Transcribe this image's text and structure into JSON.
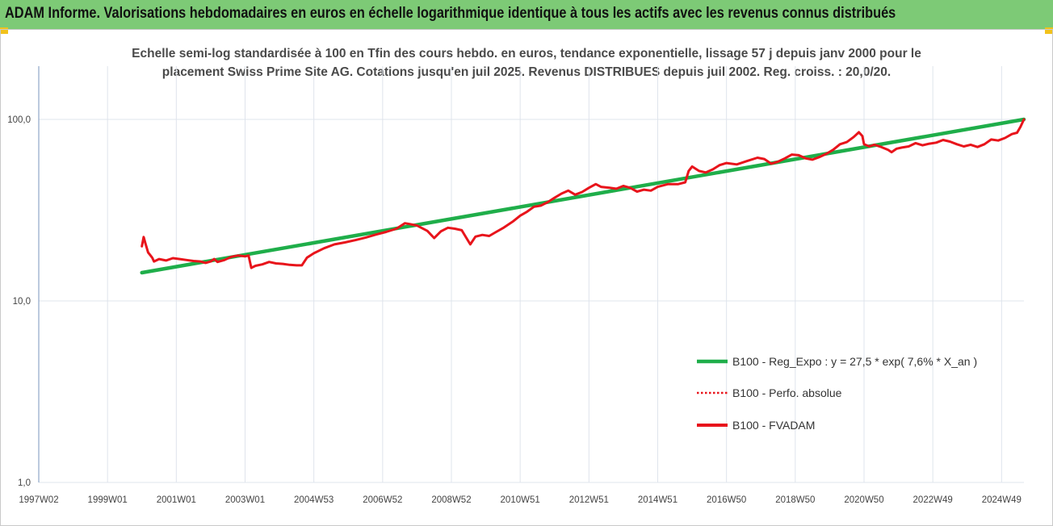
{
  "header": {
    "title": "ADAM Informe. Valorisations hebdomadaires en euros en échelle logarithmique identique à tous les actifs avec les revenus connus distribués"
  },
  "colors": {
    "banner": "#7dca76",
    "trend": "#1fae4a",
    "series": "#e8141b",
    "grid": "#dfe4ec"
  },
  "chart_data": {
    "type": "line",
    "title_lines": [
      "Echelle semi-log standardisée à 100 en Tfin des cours hebdo. en euros, tendance exponentielle, lissage 57 j depuis janv 2000 pour le",
      "placement Swiss Prime Site AG. Cotations jusqu'en juil 2025. Revenus DISTRIBUES depuis juil 2002. Reg. croiss. : 20,0/20."
    ],
    "y_scale": "log",
    "ylim": [
      1,
      100
    ],
    "y_ticks": [
      {
        "value": 1,
        "label": "1,0"
      },
      {
        "value": 10,
        "label": "10,0"
      },
      {
        "value": 100,
        "label": "100,0"
      }
    ],
    "xlim": [
      1997.0,
      2025.65
    ],
    "x_ticks": [
      {
        "year": 1997.0,
        "label": "1997W02"
      },
      {
        "year": 1999.0,
        "label": "1999W01"
      },
      {
        "year": 2001.0,
        "label": "2001W01"
      },
      {
        "year": 2003.0,
        "label": "2003W01"
      },
      {
        "year": 2005.0,
        "label": "2004W53"
      },
      {
        "year": 2007.0,
        "label": "2006W52"
      },
      {
        "year": 2009.0,
        "label": "2008W52"
      },
      {
        "year": 2011.0,
        "label": "2010W51"
      },
      {
        "year": 2013.0,
        "label": "2012W51"
      },
      {
        "year": 2015.0,
        "label": "2014W51"
      },
      {
        "year": 2017.0,
        "label": "2016W50"
      },
      {
        "year": 2019.0,
        "label": "2018W50"
      },
      {
        "year": 2021.0,
        "label": "2020W50"
      },
      {
        "year": 2023.0,
        "label": "2022W49"
      },
      {
        "year": 2025.0,
        "label": "2024W49"
      }
    ],
    "grid": true,
    "legend_position": "bottom-right",
    "series": [
      {
        "name": "B100 - Reg_Expo : y = 27,5 * exp( 7,6% *  X_an )",
        "style": "solid-green",
        "points": [
          [
            2000.0,
            14.3
          ],
          [
            2025.65,
            100.0
          ]
        ]
      },
      {
        "name": "B100 - Perfo. absolue",
        "style": "dotted-red",
        "points": []
      },
      {
        "name": "B100 - FVADAM",
        "style": "solid-red",
        "points": [
          [
            2000.0,
            20.0
          ],
          [
            2000.05,
            22.5
          ],
          [
            2000.1,
            20.8
          ],
          [
            2000.18,
            18.5
          ],
          [
            2000.25,
            17.8
          ],
          [
            2000.3,
            17.3
          ],
          [
            2000.35,
            16.5
          ],
          [
            2000.5,
            17.0
          ],
          [
            2000.7,
            16.7
          ],
          [
            2000.9,
            17.2
          ],
          [
            2001.1,
            17.0
          ],
          [
            2001.3,
            16.8
          ],
          [
            2001.5,
            16.6
          ],
          [
            2001.7,
            16.5
          ],
          [
            2001.85,
            16.2
          ],
          [
            2002.0,
            16.5
          ],
          [
            2002.1,
            17.0
          ],
          [
            2002.2,
            16.4
          ],
          [
            2002.4,
            16.8
          ],
          [
            2002.6,
            17.5
          ],
          [
            2002.8,
            17.8
          ],
          [
            2003.0,
            17.6
          ],
          [
            2003.1,
            17.8
          ],
          [
            2003.18,
            15.2
          ],
          [
            2003.3,
            15.6
          ],
          [
            2003.5,
            15.9
          ],
          [
            2003.7,
            16.4
          ],
          [
            2003.9,
            16.1
          ],
          [
            2004.1,
            16.0
          ],
          [
            2004.3,
            15.8
          ],
          [
            2004.5,
            15.7
          ],
          [
            2004.65,
            15.7
          ],
          [
            2004.8,
            17.3
          ],
          [
            2005.0,
            18.3
          ],
          [
            2005.3,
            19.5
          ],
          [
            2005.6,
            20.5
          ],
          [
            2005.9,
            21.0
          ],
          [
            2006.2,
            21.6
          ],
          [
            2006.5,
            22.3
          ],
          [
            2006.8,
            23.2
          ],
          [
            2007.1,
            24.0
          ],
          [
            2007.4,
            25.0
          ],
          [
            2007.65,
            26.8
          ],
          [
            2007.8,
            26.5
          ],
          [
            2008.0,
            26.0
          ],
          [
            2008.3,
            24.3
          ],
          [
            2008.5,
            22.2
          ],
          [
            2008.7,
            24.2
          ],
          [
            2008.9,
            25.3
          ],
          [
            2009.1,
            25.0
          ],
          [
            2009.3,
            24.5
          ],
          [
            2009.45,
            22.0
          ],
          [
            2009.55,
            20.5
          ],
          [
            2009.7,
            22.6
          ],
          [
            2009.9,
            23.1
          ],
          [
            2010.1,
            22.8
          ],
          [
            2010.3,
            24.0
          ],
          [
            2010.5,
            25.2
          ],
          [
            2010.8,
            27.5
          ],
          [
            2011.0,
            29.5
          ],
          [
            2011.2,
            31.0
          ],
          [
            2011.4,
            33.0
          ],
          [
            2011.6,
            33.5
          ],
          [
            2011.8,
            35.0
          ],
          [
            2012.0,
            37.0
          ],
          [
            2012.2,
            39.0
          ],
          [
            2012.4,
            40.5
          ],
          [
            2012.6,
            38.5
          ],
          [
            2012.8,
            39.8
          ],
          [
            2013.0,
            42.0
          ],
          [
            2013.2,
            44.0
          ],
          [
            2013.35,
            42.5
          ],
          [
            2013.6,
            42.0
          ],
          [
            2013.8,
            41.5
          ],
          [
            2014.0,
            43.0
          ],
          [
            2014.2,
            42.0
          ],
          [
            2014.4,
            40.0
          ],
          [
            2014.6,
            41.0
          ],
          [
            2014.8,
            40.5
          ],
          [
            2015.0,
            42.5
          ],
          [
            2015.3,
            44.0
          ],
          [
            2015.6,
            44.0
          ],
          [
            2015.8,
            45.0
          ],
          [
            2015.9,
            52.0
          ],
          [
            2016.0,
            55.0
          ],
          [
            2016.2,
            52.0
          ],
          [
            2016.4,
            51.0
          ],
          [
            2016.6,
            53.0
          ],
          [
            2016.8,
            56.0
          ],
          [
            2017.0,
            57.5
          ],
          [
            2017.3,
            56.5
          ],
          [
            2017.6,
            59.0
          ],
          [
            2017.9,
            61.5
          ],
          [
            2018.1,
            60.5
          ],
          [
            2018.3,
            57.0
          ],
          [
            2018.5,
            58.5
          ],
          [
            2018.7,
            61.0
          ],
          [
            2018.9,
            64.0
          ],
          [
            2019.1,
            63.5
          ],
          [
            2019.3,
            61.0
          ],
          [
            2019.5,
            60.0
          ],
          [
            2019.7,
            62.0
          ],
          [
            2019.9,
            64.5
          ],
          [
            2020.1,
            68.0
          ],
          [
            2020.3,
            73.0
          ],
          [
            2020.5,
            75.0
          ],
          [
            2020.7,
            80.0
          ],
          [
            2020.85,
            85.0
          ],
          [
            2020.95,
            81.0
          ],
          [
            2021.0,
            73.0
          ],
          [
            2021.15,
            71.0
          ],
          [
            2021.3,
            72.5
          ],
          [
            2021.5,
            70.5
          ],
          [
            2021.7,
            68.0
          ],
          [
            2021.8,
            66.0
          ],
          [
            2021.95,
            69.0
          ],
          [
            2022.1,
            70.0
          ],
          [
            2022.3,
            71.0
          ],
          [
            2022.5,
            74.0
          ],
          [
            2022.7,
            72.0
          ],
          [
            2022.9,
            73.5
          ],
          [
            2023.1,
            74.5
          ],
          [
            2023.3,
            77.0
          ],
          [
            2023.5,
            75.5
          ],
          [
            2023.7,
            73.0
          ],
          [
            2023.9,
            71.0
          ],
          [
            2024.1,
            72.5
          ],
          [
            2024.3,
            70.5
          ],
          [
            2024.5,
            73.0
          ],
          [
            2024.7,
            77.5
          ],
          [
            2024.9,
            76.5
          ],
          [
            2025.1,
            79.0
          ],
          [
            2025.3,
            83.0
          ],
          [
            2025.45,
            84.5
          ],
          [
            2025.55,
            91.0
          ],
          [
            2025.65,
            100.0
          ]
        ]
      }
    ]
  }
}
